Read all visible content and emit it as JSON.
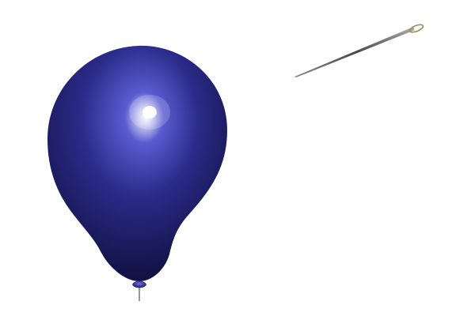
{
  "scene": {
    "background_color": "#ffffff",
    "balloon": {
      "color": "#2b2b8a",
      "highlight_color": "#ffffff",
      "shadow_color": "#0d0d3d",
      "string_color": "#555555"
    },
    "needle": {
      "shaft_color": "#5a5a5a",
      "eye_color": "#9a8a55"
    }
  }
}
